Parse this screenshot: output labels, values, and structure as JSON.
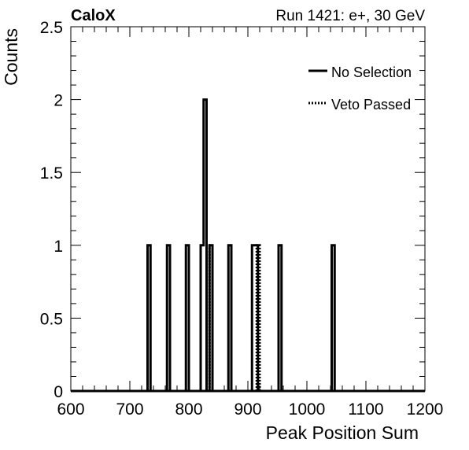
{
  "header": {
    "experiment": "CaloX",
    "run_info": "Run 1421: e+, 30 GeV"
  },
  "chart_data": {
    "type": "histogram",
    "xlabel": "Peak Position Sum",
    "ylabel": "Counts",
    "xlim": [
      600,
      1200
    ],
    "ylim": [
      0,
      2.5
    ],
    "x_ticks": [
      "600",
      "700",
      "800",
      "900",
      "1000",
      "1100",
      "1200"
    ],
    "y_ticks": [
      "0",
      "0.5",
      "1",
      "1.5",
      "2",
      "2.5"
    ],
    "legend_position": "top-right",
    "series": [
      {
        "name": "No Selection",
        "style": "solid",
        "color": "#000000",
        "bins": [
          {
            "lo": 730,
            "hi": 735,
            "count": 1
          },
          {
            "lo": 763,
            "hi": 768,
            "count": 1
          },
          {
            "lo": 795,
            "hi": 800,
            "count": 1
          },
          {
            "lo": 820,
            "hi": 825,
            "count": 1
          },
          {
            "lo": 825,
            "hi": 830,
            "count": 2
          },
          {
            "lo": 835,
            "hi": 840,
            "count": 1
          },
          {
            "lo": 867,
            "hi": 872,
            "count": 1
          },
          {
            "lo": 907,
            "hi": 912,
            "count": 1
          },
          {
            "lo": 912,
            "hi": 917,
            "count": 1
          },
          {
            "lo": 952,
            "hi": 957,
            "count": 1
          },
          {
            "lo": 1042,
            "hi": 1047,
            "count": 1
          }
        ]
      },
      {
        "name": "Veto Passed",
        "style": "dotted",
        "color": "#000000",
        "bins": [
          {
            "lo": 830,
            "hi": 835,
            "count": 1
          },
          {
            "lo": 915,
            "hi": 920,
            "count": 1
          }
        ]
      }
    ]
  }
}
